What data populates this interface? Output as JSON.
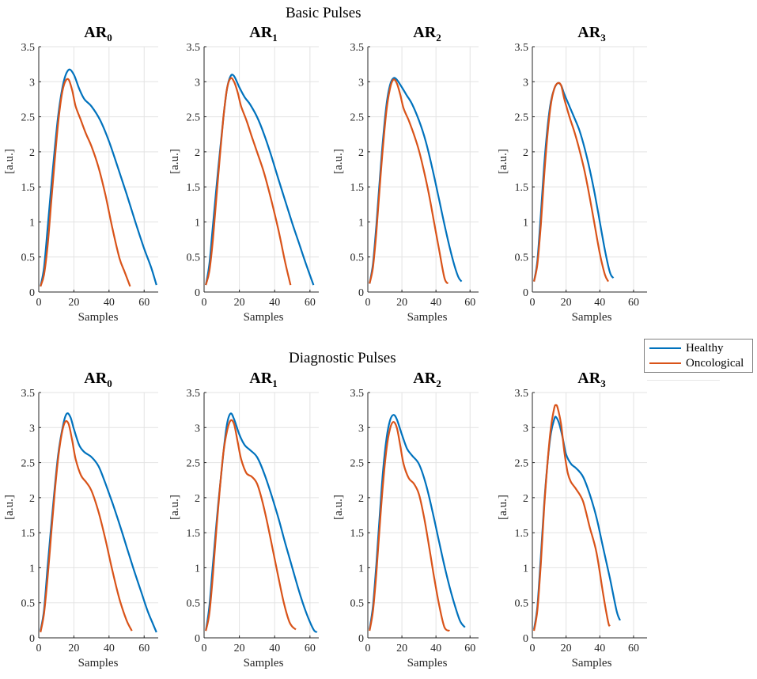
{
  "figure": {
    "section_titles": [
      "Basic Pulses",
      "Diagnostic Pulses"
    ],
    "legend": [
      {
        "label": "Healthy",
        "color": "#0072BD"
      },
      {
        "label": "Oncological",
        "color": "#D95319"
      }
    ]
  },
  "chart_data": [
    {
      "type": "line",
      "section": "Basic Pulses",
      "title_main": "AR",
      "title_sub": "0",
      "xlabel": "Samples",
      "ylabel": "[a.u.]",
      "xlim": [
        0,
        68
      ],
      "ylim": [
        0,
        3.5
      ],
      "xticks": [
        "0",
        "20",
        "40",
        "60"
      ],
      "yticks": [
        "0",
        "0.5",
        "1",
        "1.5",
        "2",
        "2.5",
        "3",
        "3.5"
      ],
      "grid": true,
      "series": [
        {
          "name": "Healthy",
          "color": "#0072BD",
          "x": [
            1,
            3,
            5,
            8,
            11,
            14,
            17,
            20,
            23,
            26,
            30,
            35,
            40,
            45,
            50,
            55,
            60,
            64,
            67
          ],
          "y": [
            0.08,
            0.35,
            0.9,
            1.75,
            2.5,
            2.98,
            3.17,
            3.1,
            2.9,
            2.75,
            2.65,
            2.45,
            2.15,
            1.78,
            1.4,
            1.0,
            0.62,
            0.35,
            0.1
          ]
        },
        {
          "name": "Oncological",
          "color": "#D95319",
          "x": [
            1,
            3,
            5,
            7,
            9,
            11,
            13,
            15,
            17,
            19,
            21,
            24,
            27,
            30,
            34,
            38,
            42,
            46,
            49,
            52
          ],
          "y": [
            0.08,
            0.25,
            0.65,
            1.25,
            1.85,
            2.4,
            2.8,
            3.0,
            3.03,
            2.88,
            2.65,
            2.45,
            2.25,
            2.08,
            1.78,
            1.38,
            0.9,
            0.48,
            0.28,
            0.08
          ]
        }
      ]
    },
    {
      "type": "line",
      "section": "Basic Pulses",
      "title_main": "AR",
      "title_sub": "1",
      "xlabel": "Samples",
      "ylabel": "[a.u.]",
      "xlim": [
        0,
        65
      ],
      "ylim": [
        0,
        3.5
      ],
      "xticks": [
        "0",
        "20",
        "40",
        "60"
      ],
      "yticks": [
        "0",
        "0.5",
        "1",
        "1.5",
        "2",
        "2.5",
        "3",
        "3.5"
      ],
      "grid": true,
      "series": [
        {
          "name": "Healthy",
          "color": "#0072BD",
          "x": [
            1,
            3,
            5,
            8,
            11,
            13,
            15,
            17,
            20,
            23,
            26,
            30,
            34,
            38,
            42,
            46,
            50,
            54,
            58,
            62
          ],
          "y": [
            0.1,
            0.4,
            0.95,
            1.75,
            2.5,
            2.9,
            3.08,
            3.08,
            2.92,
            2.78,
            2.68,
            2.5,
            2.25,
            1.95,
            1.62,
            1.3,
            0.98,
            0.68,
            0.38,
            0.1
          ]
        },
        {
          "name": "Oncological",
          "color": "#D95319",
          "x": [
            1,
            3,
            5,
            7,
            9,
            11,
            13,
            15,
            17,
            19,
            21,
            24,
            27,
            30,
            34,
            38,
            42,
            46,
            49
          ],
          "y": [
            0.1,
            0.3,
            0.75,
            1.35,
            1.95,
            2.5,
            2.9,
            3.05,
            3.0,
            2.85,
            2.65,
            2.45,
            2.22,
            2.0,
            1.7,
            1.32,
            0.9,
            0.42,
            0.1
          ]
        }
      ]
    },
    {
      "type": "line",
      "section": "Basic Pulses",
      "title_main": "AR",
      "title_sub": "2",
      "xlabel": "Samples",
      "ylabel": "[a.u.]",
      "xlim": [
        0,
        65
      ],
      "ylim": [
        0,
        3.5
      ],
      "xticks": [
        "0",
        "20",
        "40",
        "60"
      ],
      "yticks": [
        "0",
        "0.5",
        "1",
        "1.5",
        "2",
        "2.5",
        "3",
        "3.5"
      ],
      "grid": true,
      "series": [
        {
          "name": "Healthy",
          "color": "#0072BD",
          "x": [
            1,
            3,
            5,
            7,
            9,
            11,
            13,
            15,
            17,
            20,
            23,
            26,
            30,
            34,
            38,
            42,
            46,
            50,
            53,
            55
          ],
          "y": [
            0.12,
            0.4,
            0.95,
            1.6,
            2.2,
            2.68,
            2.95,
            3.05,
            3.03,
            2.92,
            2.8,
            2.68,
            2.45,
            2.15,
            1.75,
            1.3,
            0.85,
            0.45,
            0.22,
            0.15
          ]
        },
        {
          "name": "Oncological",
          "color": "#D95319",
          "x": [
            1,
            3,
            5,
            7,
            9,
            11,
            13,
            15,
            17,
            19,
            21,
            24,
            27,
            30,
            33,
            36,
            39,
            42,
            45,
            47
          ],
          "y": [
            0.12,
            0.35,
            0.85,
            1.5,
            2.1,
            2.6,
            2.9,
            3.03,
            2.98,
            2.82,
            2.62,
            2.45,
            2.25,
            2.02,
            1.72,
            1.38,
            0.98,
            0.58,
            0.2,
            0.12
          ]
        }
      ]
    },
    {
      "type": "line",
      "section": "Basic Pulses",
      "title_main": "AR",
      "title_sub": "3",
      "xlabel": "Samples",
      "ylabel": "[a.u.]",
      "xlim": [
        0,
        68
      ],
      "ylim": [
        0,
        3.5
      ],
      "xticks": [
        "0",
        "20",
        "40",
        "60"
      ],
      "yticks": [
        "0",
        "0.5",
        "1",
        "1.5",
        "2",
        "2.5",
        "3",
        "3.5"
      ],
      "grid": true,
      "series": [
        {
          "name": "Healthy",
          "color": "#0072BD",
          "x": [
            1,
            3,
            5,
            7,
            9,
            11,
            13,
            15,
            17,
            19,
            22,
            25,
            28,
            31,
            34,
            37,
            40,
            43,
            46,
            48
          ],
          "y": [
            0.15,
            0.45,
            1.1,
            1.8,
            2.35,
            2.72,
            2.9,
            2.98,
            2.95,
            2.82,
            2.65,
            2.48,
            2.3,
            2.05,
            1.75,
            1.4,
            1.0,
            0.6,
            0.28,
            0.2
          ]
        },
        {
          "name": "Oncological",
          "color": "#D95319",
          "x": [
            1,
            3,
            5,
            7,
            9,
            11,
            13,
            15,
            17,
            19,
            22,
            25,
            28,
            31,
            34,
            37,
            40,
            43,
            45
          ],
          "y": [
            0.15,
            0.4,
            0.95,
            1.65,
            2.25,
            2.68,
            2.9,
            2.98,
            2.95,
            2.75,
            2.5,
            2.28,
            2.02,
            1.72,
            1.35,
            0.95,
            0.55,
            0.25,
            0.15
          ]
        }
      ]
    },
    {
      "type": "line",
      "section": "Diagnostic Pulses",
      "title_main": "AR",
      "title_sub": "0",
      "xlabel": "Samples",
      "ylabel": "[a.u.]",
      "xlim": [
        0,
        68
      ],
      "ylim": [
        0,
        3.5
      ],
      "xticks": [
        "0",
        "20",
        "40",
        "60"
      ],
      "yticks": [
        "0",
        "0.5",
        "1",
        "1.5",
        "2",
        "2.5",
        "3",
        "3.5"
      ],
      "grid": true,
      "series": [
        {
          "name": "Healthy",
          "color": "#0072BD",
          "x": [
            1,
            3,
            5,
            8,
            11,
            14,
            16,
            18,
            20,
            23,
            26,
            30,
            34,
            38,
            42,
            46,
            50,
            54,
            58,
            62,
            65,
            67
          ],
          "y": [
            0.1,
            0.4,
            1.0,
            1.85,
            2.6,
            3.05,
            3.2,
            3.15,
            2.98,
            2.75,
            2.65,
            2.58,
            2.45,
            2.2,
            1.92,
            1.62,
            1.3,
            0.98,
            0.68,
            0.38,
            0.2,
            0.08
          ]
        },
        {
          "name": "Oncological",
          "color": "#D95319",
          "x": [
            1,
            3,
            5,
            7,
            9,
            11,
            13,
            15,
            17,
            19,
            21,
            24,
            27,
            30,
            34,
            38,
            42,
            46,
            50,
            53
          ],
          "y": [
            0.08,
            0.35,
            0.85,
            1.45,
            2.05,
            2.55,
            2.9,
            3.08,
            3.05,
            2.82,
            2.55,
            2.32,
            2.22,
            2.1,
            1.8,
            1.4,
            0.95,
            0.55,
            0.25,
            0.1
          ]
        }
      ]
    },
    {
      "type": "line",
      "section": "Diagnostic Pulses",
      "title_main": "AR",
      "title_sub": "1",
      "xlabel": "Samples",
      "ylabel": "[a.u.]",
      "xlim": [
        0,
        65
      ],
      "ylim": [
        0,
        3.5
      ],
      "xticks": [
        "0",
        "20",
        "40",
        "60"
      ],
      "yticks": [
        "0",
        "0.5",
        "1",
        "1.5",
        "2",
        "2.5",
        "3",
        "3.5"
      ],
      "grid": true,
      "series": [
        {
          "name": "Healthy",
          "color": "#0072BD",
          "x": [
            1,
            3,
            5,
            8,
            11,
            13,
            15,
            17,
            20,
            23,
            26,
            30,
            34,
            38,
            42,
            46,
            50,
            54,
            58,
            62,
            64
          ],
          "y": [
            0.1,
            0.45,
            1.05,
            1.9,
            2.65,
            3.05,
            3.2,
            3.12,
            2.9,
            2.75,
            2.68,
            2.58,
            2.35,
            2.05,
            1.72,
            1.35,
            1.0,
            0.65,
            0.35,
            0.12,
            0.08
          ]
        },
        {
          "name": "Oncological",
          "color": "#D95319",
          "x": [
            1,
            3,
            5,
            7,
            9,
            11,
            13,
            15,
            17,
            19,
            21,
            24,
            27,
            30,
            33,
            36,
            39,
            42,
            45,
            48,
            50,
            52
          ],
          "y": [
            0.1,
            0.35,
            0.9,
            1.55,
            2.15,
            2.65,
            2.95,
            3.1,
            3.05,
            2.8,
            2.55,
            2.35,
            2.3,
            2.2,
            1.95,
            1.62,
            1.25,
            0.88,
            0.52,
            0.25,
            0.16,
            0.12
          ]
        }
      ]
    },
    {
      "type": "line",
      "section": "Diagnostic Pulses",
      "title_main": "AR",
      "title_sub": "2",
      "xlabel": "Samples",
      "ylabel": "[a.u.]",
      "xlim": [
        0,
        65
      ],
      "ylim": [
        0,
        3.5
      ],
      "xticks": [
        "0",
        "20",
        "40",
        "60"
      ],
      "yticks": [
        "0",
        "0.5",
        "1",
        "1.5",
        "2",
        "2.5",
        "3",
        "3.5"
      ],
      "grid": true,
      "series": [
        {
          "name": "Healthy",
          "color": "#0072BD",
          "x": [
            1,
            3,
            5,
            7,
            9,
            11,
            13,
            15,
            17,
            20,
            23,
            26,
            30,
            34,
            38,
            42,
            46,
            50,
            54,
            57
          ],
          "y": [
            0.12,
            0.45,
            1.05,
            1.75,
            2.4,
            2.85,
            3.1,
            3.18,
            3.12,
            2.9,
            2.7,
            2.6,
            2.48,
            2.2,
            1.8,
            1.35,
            0.92,
            0.55,
            0.25,
            0.15
          ]
        },
        {
          "name": "Oncological",
          "color": "#D95319",
          "x": [
            1,
            3,
            5,
            7,
            9,
            11,
            13,
            15,
            17,
            19,
            21,
            24,
            27,
            30,
            33,
            36,
            39,
            42,
            45,
            48
          ],
          "y": [
            0.1,
            0.38,
            0.92,
            1.6,
            2.22,
            2.7,
            2.98,
            3.08,
            3.0,
            2.75,
            2.48,
            2.28,
            2.2,
            2.05,
            1.72,
            1.3,
            0.85,
            0.45,
            0.15,
            0.1
          ]
        }
      ]
    },
    {
      "type": "line",
      "section": "Diagnostic Pulses",
      "title_main": "AR",
      "title_sub": "3",
      "xlabel": "Samples",
      "ylabel": "[a.u.]",
      "xlim": [
        0,
        68
      ],
      "ylim": [
        0,
        3.5
      ],
      "xticks": [
        "0",
        "20",
        "40",
        "60"
      ],
      "yticks": [
        "0",
        "0.5",
        "1",
        "1.5",
        "2",
        "2.5",
        "3",
        "3.5"
      ],
      "grid": true,
      "series": [
        {
          "name": "Healthy",
          "color": "#0072BD",
          "x": [
            1,
            3,
            5,
            7,
            9,
            11,
            13,
            14,
            16,
            18,
            20,
            23,
            26,
            30,
            34,
            38,
            42,
            46,
            50,
            52
          ],
          "y": [
            0.12,
            0.45,
            1.15,
            1.9,
            2.5,
            2.92,
            3.12,
            3.15,
            3.05,
            2.85,
            2.62,
            2.48,
            2.42,
            2.3,
            2.05,
            1.72,
            1.28,
            0.85,
            0.38,
            0.25
          ]
        },
        {
          "name": "Oncological",
          "color": "#D95319",
          "x": [
            1,
            3,
            5,
            7,
            9,
            11,
            13,
            14,
            15,
            17,
            19,
            21,
            23,
            26,
            30,
            34,
            38,
            42,
            45,
            46
          ],
          "y": [
            0.1,
            0.4,
            1.05,
            1.85,
            2.5,
            3.0,
            3.28,
            3.32,
            3.28,
            3.05,
            2.65,
            2.35,
            2.22,
            2.12,
            1.95,
            1.58,
            1.22,
            0.62,
            0.22,
            0.17
          ]
        }
      ]
    }
  ]
}
